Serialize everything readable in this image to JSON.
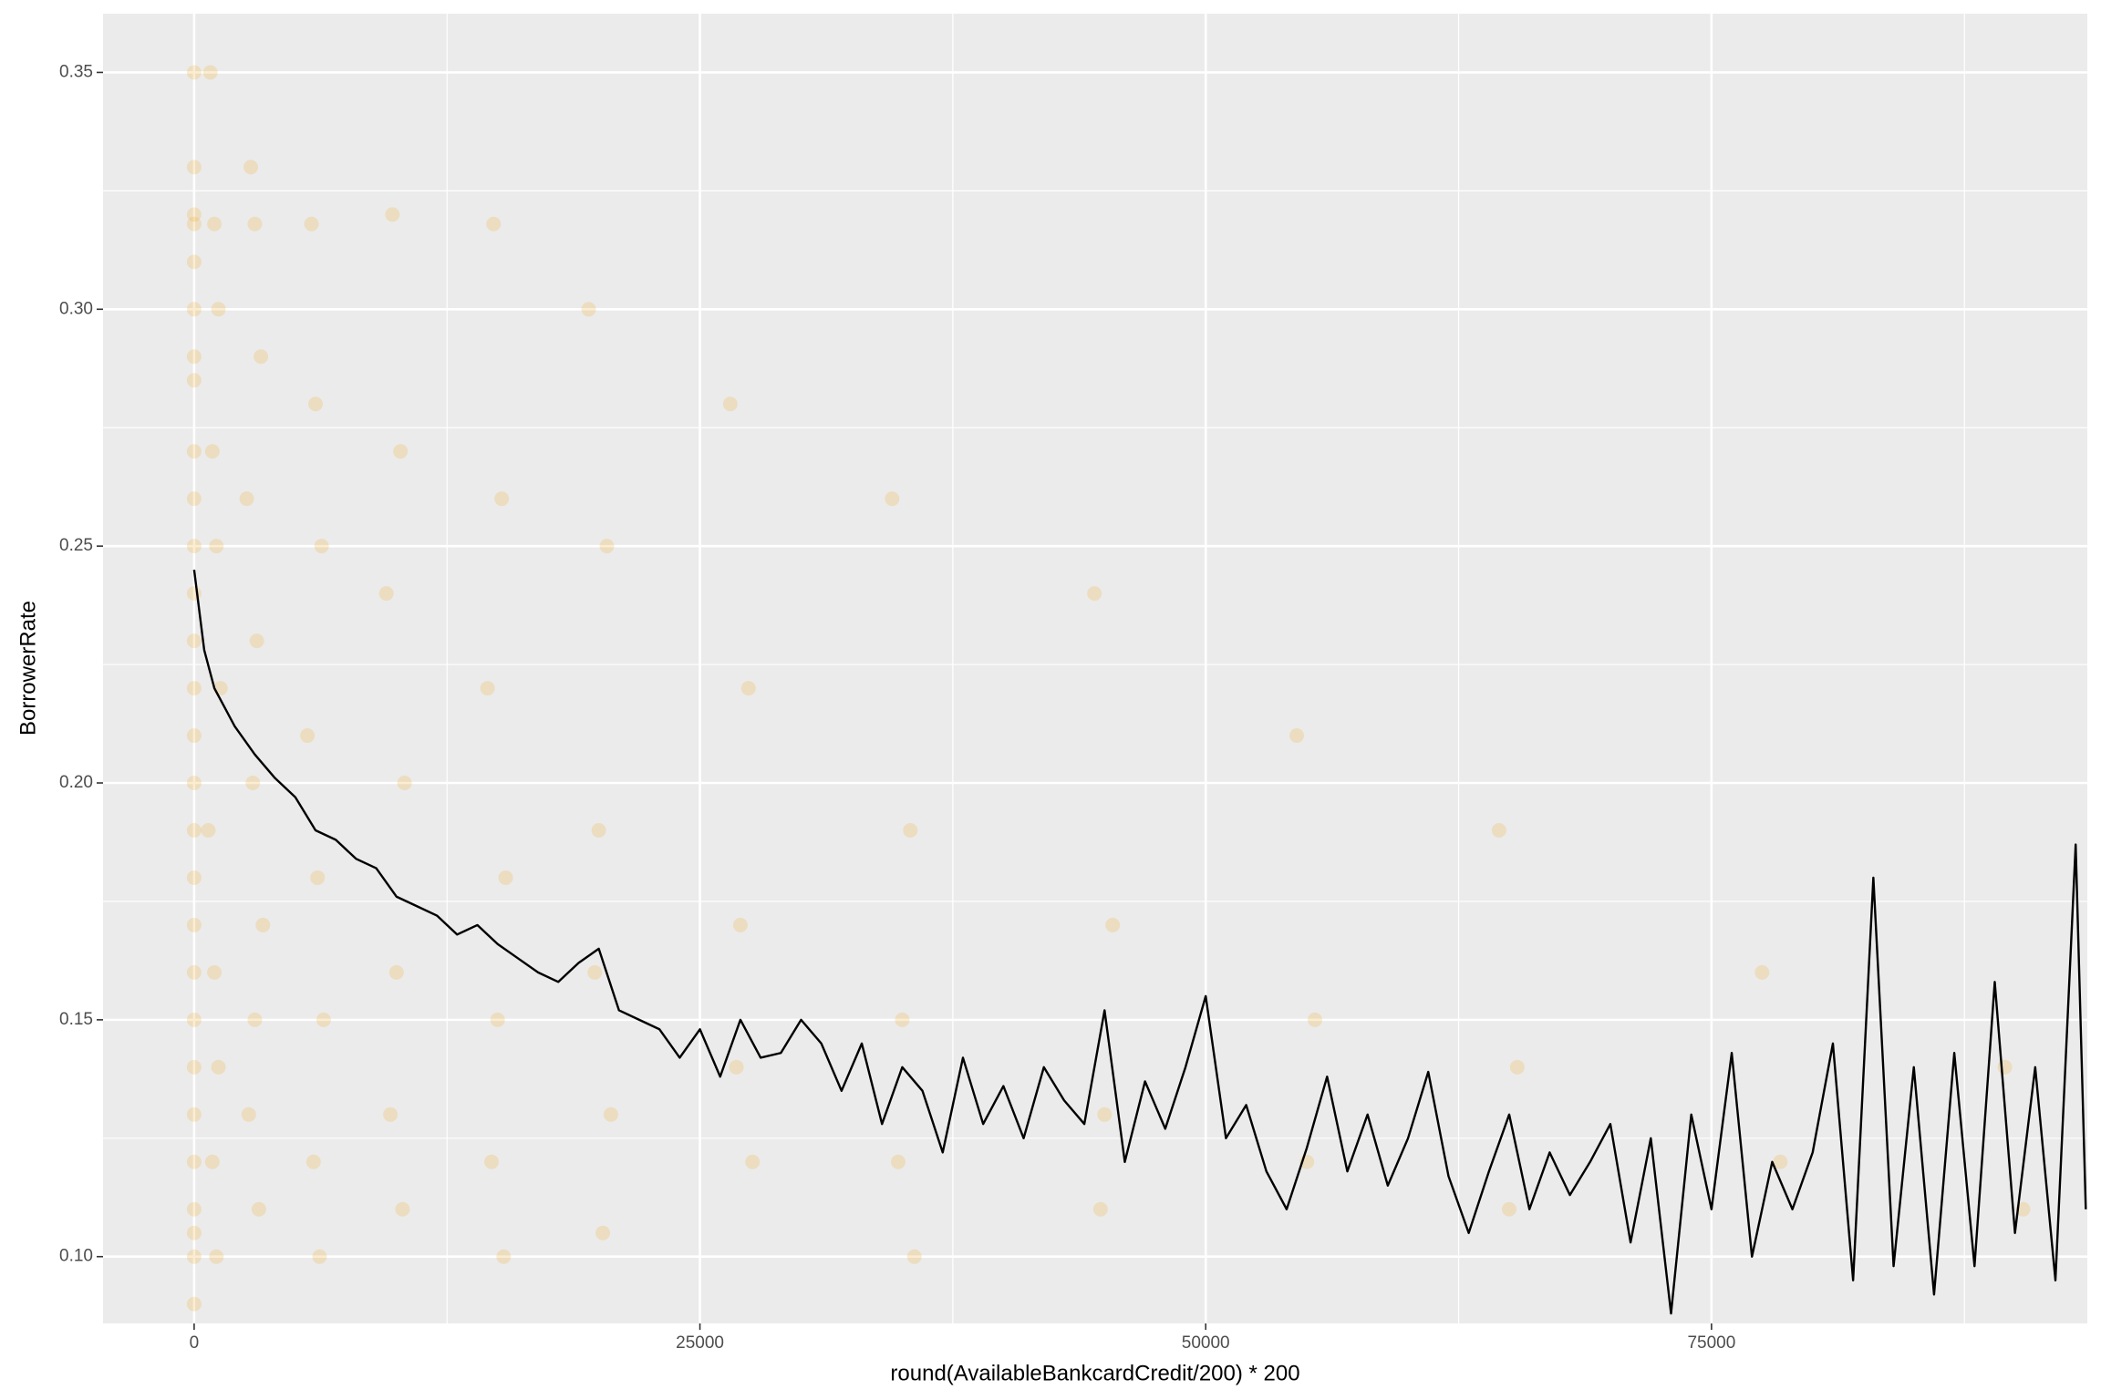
{
  "chart_data": {
    "type": "scatter",
    "x_label": "round(AvailableBankcardCredit/200) * 200",
    "y_label": "BorrowerRate",
    "xlim": [
      -4503,
      93576
    ],
    "ylim": [
      0.0859,
      0.3624
    ],
    "xticks": [
      0,
      25000,
      50000,
      75000
    ],
    "yticks": [
      {
        "value": 0.1,
        "label": "0.10"
      },
      0.15,
      {
        "value": 0.2,
        "label": "0.20"
      },
      0.25,
      {
        "value": 0.3,
        "label": "0.30"
      },
      0.35
    ],
    "x_minor_grid": [
      12500,
      37500,
      62500,
      87500
    ],
    "y_minor_grid": [
      0.125,
      0.175,
      0.225,
      0.275,
      0.325
    ],
    "grid": true,
    "series": [
      {
        "type": "scatter",
        "color": "#f2a516",
        "x": [
          0,
          0,
          0,
          0,
          0,
          0,
          0,
          0,
          0,
          0,
          0,
          0,
          0,
          0,
          0,
          0,
          0,
          0,
          0,
          0,
          0,
          0,
          0,
          0,
          0,
          0,
          0,
          0,
          800,
          1000,
          1200,
          900,
          1100,
          1300,
          700,
          1000,
          1200,
          900,
          1100,
          2800,
          3000,
          3300,
          2600,
          3100,
          2900,
          3400,
          3000,
          2700,
          3200,
          5800,
          6000,
          6300,
          5600,
          6100,
          6400,
          5900,
          6200,
          9800,
          10200,
          9500,
          10400,
          10000,
          9700,
          10300,
          14800,
          15200,
          14500,
          15400,
          15000,
          14700,
          15300,
          19500,
          20400,
          20000,
          19800,
          20600,
          20200,
          26500,
          27400,
          27000,
          26800,
          27600,
          34500,
          35400,
          35000,
          34800,
          35600,
          44500,
          45400,
          45000,
          44800,
          54500,
          55400,
          55000,
          64500,
          65400,
          65000,
          77500,
          78400,
          89500,
          90400
        ],
        "y": [
          0.35,
          0.33,
          0.32,
          0.318,
          0.31,
          0.3,
          0.29,
          0.285,
          0.27,
          0.26,
          0.25,
          0.24,
          0.23,
          0.22,
          0.21,
          0.2,
          0.19,
          0.18,
          0.17,
          0.16,
          0.15,
          0.14,
          0.13,
          0.12,
          0.11,
          0.105,
          0.1,
          0.09,
          0.35,
          0.318,
          0.3,
          0.27,
          0.25,
          0.22,
          0.19,
          0.16,
          0.14,
          0.12,
          0.1,
          0.33,
          0.318,
          0.29,
          0.26,
          0.23,
          0.2,
          0.17,
          0.15,
          0.13,
          0.11,
          0.318,
          0.28,
          0.25,
          0.21,
          0.18,
          0.15,
          0.12,
          0.1,
          0.32,
          0.27,
          0.24,
          0.2,
          0.16,
          0.13,
          0.11,
          0.318,
          0.26,
          0.22,
          0.18,
          0.15,
          0.12,
          0.1,
          0.3,
          0.25,
          0.19,
          0.16,
          0.13,
          0.105,
          0.28,
          0.22,
          0.17,
          0.14,
          0.12,
          0.26,
          0.19,
          0.15,
          0.12,
          0.1,
          0.24,
          0.17,
          0.13,
          0.11,
          0.21,
          0.15,
          0.12,
          0.19,
          0.14,
          0.11,
          0.16,
          0.12,
          0.14,
          0.11
        ]
      },
      {
        "type": "line",
        "color": "#000000",
        "x": [
          0,
          500,
          1000,
          1500,
          2000,
          3000,
          4000,
          5000,
          6000,
          7000,
          8000,
          9000,
          10000,
          11000,
          12000,
          13000,
          14000,
          15000,
          16000,
          17000,
          18000,
          19000,
          20000,
          21000,
          22000,
          23000,
          24000,
          25000,
          26000,
          27000,
          28000,
          29000,
          30000,
          31000,
          32000,
          33000,
          34000,
          35000,
          36000,
          37000,
          38000,
          39000,
          40000,
          41000,
          42000,
          43000,
          44000,
          45000,
          46000,
          47000,
          48000,
          49000,
          50000,
          51000,
          52000,
          53000,
          54000,
          55000,
          56000,
          57000,
          58000,
          59000,
          60000,
          61000,
          62000,
          63000,
          64000,
          65000,
          66000,
          67000,
          68000,
          69000,
          70000,
          71000,
          72000,
          73000,
          74000,
          75000,
          76000,
          77000,
          78000,
          79000,
          80000,
          81000,
          82000,
          83000,
          84000,
          85000,
          86000,
          87000,
          88000,
          89000,
          90000,
          91000,
          92000,
          93000,
          93500
        ],
        "y": [
          0.245,
          0.228,
          0.22,
          0.216,
          0.212,
          0.206,
          0.201,
          0.197,
          0.19,
          0.188,
          0.184,
          0.182,
          0.176,
          0.174,
          0.172,
          0.168,
          0.17,
          0.166,
          0.163,
          0.16,
          0.158,
          0.162,
          0.165,
          0.152,
          0.15,
          0.148,
          0.142,
          0.148,
          0.138,
          0.15,
          0.142,
          0.143,
          0.15,
          0.145,
          0.135,
          0.145,
          0.128,
          0.14,
          0.135,
          0.122,
          0.142,
          0.128,
          0.136,
          0.125,
          0.14,
          0.133,
          0.128,
          0.152,
          0.12,
          0.137,
          0.127,
          0.14,
          0.155,
          0.125,
          0.132,
          0.118,
          0.11,
          0.123,
          0.138,
          0.118,
          0.13,
          0.115,
          0.125,
          0.139,
          0.117,
          0.105,
          0.118,
          0.13,
          0.11,
          0.122,
          0.113,
          0.12,
          0.128,
          0.103,
          0.125,
          0.088,
          0.13,
          0.11,
          0.143,
          0.1,
          0.12,
          0.11,
          0.122,
          0.145,
          0.095,
          0.18,
          0.098,
          0.14,
          0.092,
          0.143,
          0.098,
          0.158,
          0.105,
          0.14,
          0.095,
          0.187,
          0.11
        ]
      }
    ]
  }
}
